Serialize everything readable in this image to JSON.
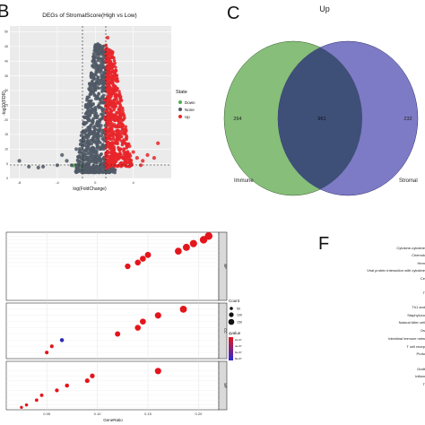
{
  "panels": {
    "B": {
      "letter": "B",
      "title": "DEGs of StromalScore(High vs Low)",
      "xlabel": "log(FoldChange)",
      "ylabel": "-log10(FDR)",
      "xticks": [
        "-8",
        "-4",
        "0",
        "4"
      ],
      "yticks": [
        "0",
        "5",
        "10",
        "15",
        "20",
        "25",
        "30",
        "35",
        "40",
        "45",
        "50"
      ],
      "legend_title": "State",
      "legend_items": [
        {
          "label": "Down",
          "color": "#4caf50"
        },
        {
          "label": "None",
          "color": "#505a66"
        },
        {
          "label": "Up",
          "color": "#e8262a"
        }
      ]
    },
    "C": {
      "letter": "C",
      "title": "Up",
      "left_label": "Immune",
      "right_label": "Stromal",
      "left_count": "264",
      "center_count": "961",
      "right_count": "232",
      "left_color": "#86be7a",
      "right_color": "#7e7bc6",
      "overlap_color": "#3e4f78"
    },
    "E": {
      "xlabel": "GeneRatio",
      "xticks": [
        "0.05",
        "0.10",
        "0.15",
        "0.20"
      ],
      "facets": [
        "BP",
        "CC",
        "MF"
      ],
      "legend_count_title": "Count",
      "legend_counts": [
        "50",
        "100",
        "150"
      ],
      "legend_color_title": "qvalue",
      "legend_color_ticks": [
        "2e-07",
        "4e-07",
        "6e-07",
        "8e-07"
      ]
    },
    "F": {
      "letter": "F",
      "labels": [
        "Cytokine-cytokine",
        "Chemok",
        "Hem",
        "Viral protein interaction with cytokine",
        "Ce",
        "T",
        "Th1 and",
        "Staphyloco",
        "Natural killer cell",
        "Os",
        "Intestinal immune netw",
        "T cell recep",
        "Proto",
        "Graft",
        "Inflam",
        "T"
      ]
    }
  },
  "chart_data": [
    {
      "type": "scatter",
      "title": "DEGs of StromalScore(High vs Low)",
      "xlabel": "log(FoldChange)",
      "ylabel": "-log10(FDR)",
      "xlim": [
        -9,
        8
      ],
      "ylim": [
        0,
        52
      ],
      "series": [
        {
          "name": "Down",
          "points": [
            [
              -1.9,
              3.9
            ],
            [
              -1.6,
              5.1
            ],
            [
              -2.3,
              4.4
            ],
            [
              -1.7,
              3.6
            ],
            [
              -2.1,
              4.6
            ],
            [
              -1.55,
              4.2
            ]
          ]
        },
        {
          "name": "None",
          "points": [
            [
              -0.2,
              9
            ],
            [
              0.1,
              12
            ],
            [
              -0.5,
              7
            ],
            [
              0.3,
              15
            ],
            [
              0.5,
              20
            ],
            [
              -1,
              5
            ],
            [
              -2.5,
              4.5
            ],
            [
              -3,
              6
            ],
            [
              -4,
              4.5
            ],
            [
              -5.5,
              4
            ],
            [
              -8,
              6
            ],
            [
              -3.5,
              8
            ],
            [
              -2,
              10
            ],
            [
              0.8,
              26
            ],
            [
              1,
              30
            ],
            [
              -6,
              3.7
            ],
            [
              -7,
              4
            ],
            [
              -1.2,
              8
            ],
            [
              0,
              6
            ],
            [
              0.6,
              18
            ]
          ]
        },
        {
          "name": "Up",
          "points": [
            [
              1.2,
              44
            ],
            [
              1.4,
              38
            ],
            [
              1.6,
              36
            ],
            [
              1.8,
              34
            ],
            [
              1.5,
              40
            ],
            [
              2,
              30
            ],
            [
              2.3,
              26
            ],
            [
              2.6,
              22
            ],
            [
              2.9,
              18
            ],
            [
              3.3,
              14
            ],
            [
              3.6,
              11
            ],
            [
              4,
              9
            ],
            [
              4.4,
              7
            ],
            [
              5,
              6
            ],
            [
              5.5,
              8
            ],
            [
              6.2,
              7
            ],
            [
              1.3,
              48
            ],
            [
              2.1,
              20
            ],
            [
              3,
              10
            ],
            [
              1.7,
              25
            ],
            [
              2.5,
              15
            ],
            [
              3.8,
              5
            ],
            [
              4.8,
              4.5
            ],
            [
              6.6,
              12
            ],
            [
              1.9,
              12
            ],
            [
              2.7,
              8
            ],
            [
              1.6,
              6
            ]
          ]
        }
      ]
    },
    {
      "type": "scatter",
      "title": "",
      "xlabel": "GeneRatio",
      "xlim": [
        0.01,
        0.22
      ],
      "facets": [
        {
          "name": "BP",
          "points": [
            [
              0.21,
              17
            ],
            [
              0.205,
              16
            ],
            [
              0.195,
              15
            ],
            [
              0.188,
              14
            ],
            [
              0.18,
              13
            ],
            [
              0.15,
              12
            ],
            [
              0.145,
              11
            ],
            [
              0.14,
              10
            ],
            [
              0.13,
              9
            ]
          ]
        },
        {
          "name": "CC",
          "points": [
            [
              0.185,
              8
            ],
            [
              0.16,
              7
            ],
            [
              0.145,
              6
            ],
            [
              0.14,
              5
            ],
            [
              0.12,
              4
            ],
            [
              0.065,
              3
            ],
            [
              0.055,
              2
            ],
            [
              0.05,
              1
            ]
          ]
        },
        {
          "name": "MF",
          "points": [
            [
              0.16,
              8
            ],
            [
              0.095,
              7
            ],
            [
              0.09,
              6
            ],
            [
              0.07,
              5
            ],
            [
              0.06,
              4
            ],
            [
              0.045,
              3
            ],
            [
              0.04,
              2
            ],
            [
              0.03,
              1
            ],
            [
              0.025,
              0.5
            ]
          ]
        }
      ]
    }
  ]
}
